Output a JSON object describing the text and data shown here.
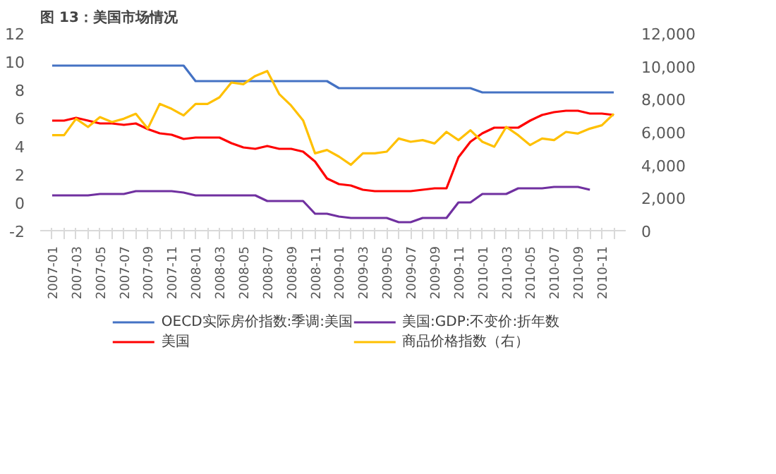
{
  "chart_data": {
    "type": "line",
    "title": "图 13：美国市场情况",
    "categories": [
      "2007-01",
      null,
      "2007-03",
      null,
      "2007-05",
      null,
      "2007-07",
      null,
      "2007-09",
      null,
      "2007-11",
      null,
      "2008-01",
      null,
      "2008-03",
      null,
      "2008-05",
      null,
      "2008-07",
      null,
      "2008-09",
      null,
      "2008-11",
      null,
      "2009-01",
      null,
      "2009-03",
      null,
      "2009-05",
      null,
      "2009-07",
      null,
      "2009-09",
      null,
      "2009-11",
      null,
      "2010-01",
      null,
      "2010-03",
      null,
      "2010-05",
      null,
      "2010-07",
      null,
      "2010-09",
      null,
      "2010-11",
      null
    ],
    "series": [
      {
        "name": "OECD实际房价指数:季调:美国",
        "color": "#4472c4",
        "values": [
          9.7,
          9.7,
          9.7,
          9.7,
          9.7,
          9.7,
          9.7,
          9.7,
          9.7,
          9.7,
          9.7,
          9.7,
          8.6,
          8.6,
          8.6,
          8.6,
          8.6,
          8.6,
          8.6,
          8.6,
          8.6,
          8.6,
          8.6,
          8.6,
          8.1,
          8.1,
          8.1,
          8.1,
          8.1,
          8.1,
          8.1,
          8.1,
          8.1,
          8.1,
          8.1,
          8.1,
          7.8,
          7.8,
          7.8,
          7.8,
          7.8,
          7.8,
          7.8,
          7.8,
          7.8,
          7.8,
          7.8,
          7.8
        ]
      },
      {
        "name": "美国",
        "color": "#ff0000",
        "values": [
          5.8,
          5.8,
          6.0,
          5.8,
          5.6,
          5.6,
          5.5,
          5.6,
          5.2,
          4.9,
          4.8,
          4.5,
          4.6,
          4.6,
          4.6,
          4.2,
          3.9,
          3.8,
          4.0,
          3.8,
          3.8,
          3.6,
          2.9,
          1.7,
          1.3,
          1.2,
          0.9,
          0.8,
          0.8,
          0.8,
          0.8,
          0.9,
          1.0,
          1.0,
          3.2,
          4.3,
          4.9,
          5.3,
          5.3,
          5.3,
          5.8,
          6.2,
          6.4,
          6.5,
          6.5,
          6.3,
          6.3,
          6.2
        ]
      },
      {
        "name": "美国:GDP:不变价:折年数",
        "color": "#7030a0",
        "values": [
          0.5,
          0.5,
          0.5,
          0.5,
          0.6,
          0.6,
          0.6,
          0.8,
          0.8,
          0.8,
          0.8,
          0.7,
          0.5,
          0.5,
          0.5,
          0.5,
          0.5,
          0.5,
          0.1,
          0.1,
          0.1,
          0.1,
          -0.8,
          -0.8,
          -1.0,
          -1.1,
          -1.1,
          -1.1,
          -1.1,
          -1.4,
          -1.4,
          -1.1,
          -1.1,
          -1.1,
          0.0,
          0.0,
          0.6,
          0.6,
          0.6,
          1.0,
          1.0,
          1.0,
          1.1,
          1.1,
          1.1,
          0.9,
          null,
          null
        ]
      },
      {
        "name": "商品价格指数（右）",
        "color": "#ffc000",
        "axis": "y2",
        "values": [
          5800,
          5800,
          6800,
          6300,
          6900,
          6600,
          6800,
          7100,
          6200,
          7700,
          7400,
          7000,
          7700,
          7700,
          8100,
          9000,
          8900,
          9400,
          9700,
          8300,
          7600,
          6700,
          4700,
          4900,
          4500,
          4000,
          4700,
          4700,
          4800,
          5600,
          5400,
          5500,
          5300,
          6000,
          5500,
          6100,
          5400,
          5100,
          6300,
          5800,
          5200,
          5600,
          5500,
          6000,
          5900,
          6200,
          6400,
          7100
        ]
      }
    ],
    "ylim": [
      -2,
      12
    ],
    "yticks": [
      -2,
      0,
      2,
      4,
      6,
      8,
      10,
      12
    ],
    "y2lim": [
      0,
      12000
    ],
    "y2ticks": [
      {
        "value": 0,
        "label": "0"
      },
      {
        "value": 2000,
        "label": "2,000"
      },
      {
        "value": 4000,
        "label": "4,000"
      },
      {
        "value": 6000,
        "label": "6,000"
      },
      {
        "value": 8000,
        "label": "8,000"
      },
      {
        "value": 10000,
        "label": "10,000"
      },
      {
        "value": 12000,
        "label": "12,000"
      }
    ],
    "grid": false,
    "legend": "bottom",
    "marker": "none",
    "line_style": "solid"
  }
}
